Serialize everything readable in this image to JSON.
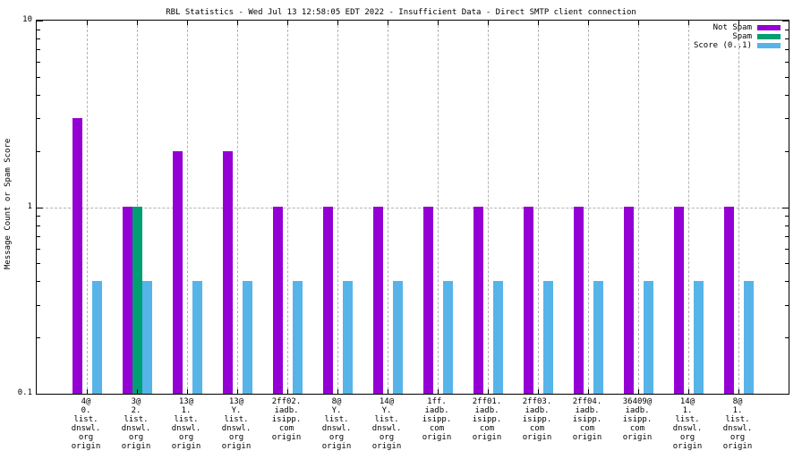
{
  "chart_data": {
    "type": "bar",
    "title": "RBL Statistics - Wed Jul 13 12:58:05 EDT 2022 - Insufficient Data - Direct SMTP client connection",
    "ylabel": "Message Count or Spam Score",
    "y_scale": "log",
    "ylim": [
      0.1,
      10
    ],
    "grid": true,
    "legend_position": "top-right",
    "y_axis_ticks": [
      {
        "label": "10",
        "value": 10
      },
      {
        "label": "1",
        "value": 1
      },
      {
        "label": "0.1",
        "value": 0.1
      }
    ],
    "categories": [
      [
        "4@",
        "0.",
        "list.",
        "dnswl.",
        "org",
        "origin"
      ],
      [
        "3@",
        "2.",
        "list.",
        "dnswl.",
        "org",
        "origin"
      ],
      [
        "13@",
        "1.",
        "list.",
        "dnswl.",
        "org",
        "origin"
      ],
      [
        "13@",
        "Y.",
        "list.",
        "dnswl.",
        "org",
        "origin"
      ],
      [
        "2ff02.",
        "iadb.",
        "isipp.",
        "com",
        "origin"
      ],
      [
        "8@",
        "Y.",
        "list.",
        "dnswl.",
        "org",
        "origin"
      ],
      [
        "14@",
        "Y.",
        "list.",
        "dnswl.",
        "org",
        "origin"
      ],
      [
        "1ff.",
        "iadb.",
        "isipp.",
        "com",
        "origin"
      ],
      [
        "2ff01.",
        "iadb.",
        "isipp.",
        "com",
        "origin"
      ],
      [
        "2ff03.",
        "iadb.",
        "isipp.",
        "com",
        "origin"
      ],
      [
        "2ff04.",
        "iadb.",
        "isipp.",
        "com",
        "origin"
      ],
      [
        "36409@",
        "iadb.",
        "isipp.",
        "com",
        "origin"
      ],
      [
        "14@",
        "1.",
        "list.",
        "dnswl.",
        "org",
        "origin"
      ],
      [
        "8@",
        "1.",
        "list.",
        "dnswl.",
        "org",
        "origin"
      ]
    ],
    "series": [
      {
        "name": "Not Spam",
        "color": "#9400d3",
        "values": [
          3,
          1,
          2,
          2,
          1,
          1,
          1,
          1,
          1,
          1,
          1,
          1,
          1,
          1
        ]
      },
      {
        "name": "Spam",
        "color": "#009e73",
        "values": [
          0,
          1,
          0,
          0,
          0,
          0,
          0,
          0,
          0,
          0,
          0,
          0,
          0,
          0
        ]
      },
      {
        "name": "Score (0..1)",
        "color": "#56b4e9",
        "values": [
          0.4,
          0.4,
          0.4,
          0.4,
          0.4,
          0.4,
          0.4,
          0.4,
          0.4,
          0.4,
          0.4,
          0.4,
          0.4,
          0.4
        ]
      }
    ],
    "colors": {
      "grid": "#b3b3b3",
      "axis": "#000000",
      "background": "#ffffff"
    }
  }
}
